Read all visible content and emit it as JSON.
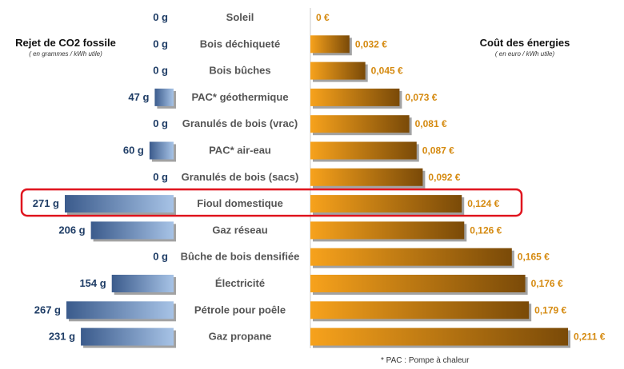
{
  "chart_data": {
    "type": "bar",
    "left_panel": {
      "title": "Rejet de CO2 fossile",
      "subtitle": "( en grammes / kWh utile)"
    },
    "right_panel": {
      "title": "Coût des énergies",
      "subtitle": "( en euro / kWh utile)"
    },
    "categories": [
      "Soleil",
      "Bois déchiqueté",
      "Bois bûches",
      "PAC* géothermique",
      "Granulés de bois (vrac)",
      "PAC* air-eau",
      "Granulés de bois (sacs)",
      "Fioul domestique",
      "Gaz réseau",
      "Bûche de bois densifiée",
      "Électricité",
      "Pétrole pour poêle",
      "Gaz propane"
    ],
    "series": [
      {
        "name": "Rejet de CO2 fossile",
        "values": [
          0,
          0,
          0,
          47,
          0,
          60,
          0,
          271,
          206,
          0,
          154,
          267,
          231
        ],
        "labels": [
          "0 g",
          "0 g",
          "0 g",
          "47 g",
          "0 g",
          "60 g",
          "0 g",
          "271 g",
          "206 g",
          "0 g",
          "154 g",
          "267 g",
          "231 g"
        ]
      },
      {
        "name": "Coût des énergies",
        "values": [
          0,
          0.032,
          0.045,
          0.073,
          0.081,
          0.087,
          0.092,
          0.124,
          0.126,
          0.165,
          0.176,
          0.179,
          0.211
        ],
        "labels": [
          "0 €",
          "0,032 €",
          "0,045 €",
          "0,073 €",
          "0,081 €",
          "0,087 €",
          "0,092 €",
          "0,124 €",
          "0,126 €",
          "0,165 €",
          "0,176 €",
          "0,179 €",
          "0,211 €"
        ]
      }
    ],
    "highlighted_category": "Fioul domestique",
    "footnote": "* PAC : Pompe à chaleur",
    "colors": {
      "co2_bar_light": "#a7c3e6",
      "co2_bar_dark": "#3b5b8c",
      "cost_bar_light": "#f7a21c",
      "cost_bar_dark": "#7a4a08",
      "co2_label": "#1f3d66",
      "cost_label": "#d58a10",
      "category_label": "#555555",
      "highlight_border": "#e0141e"
    }
  }
}
